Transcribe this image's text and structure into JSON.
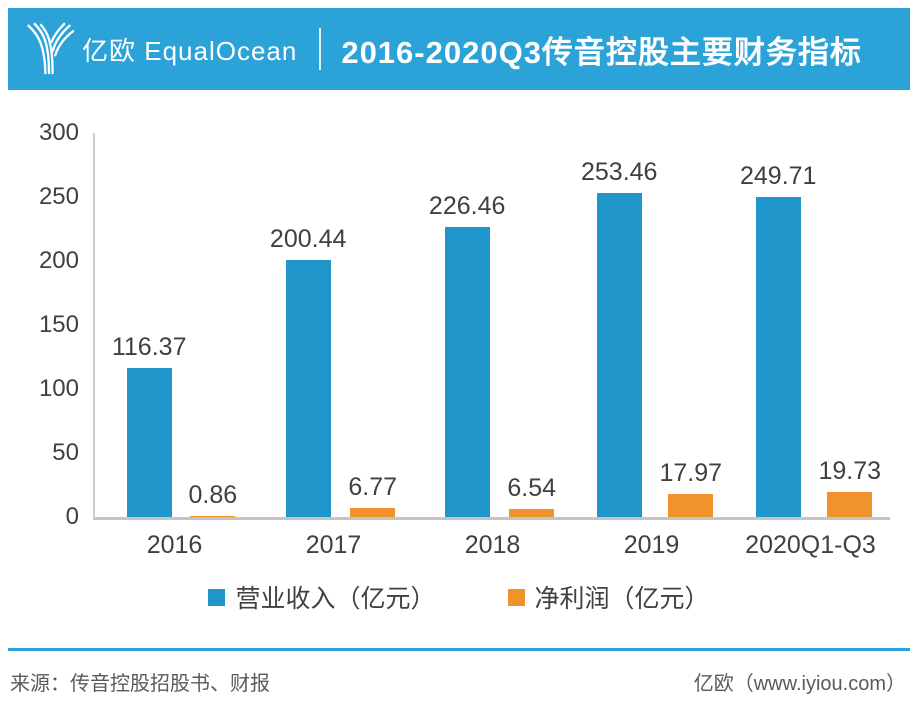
{
  "header": {
    "logo_text": "亿欧 EqualOcean",
    "title": "2016-2020Q3传音控股主要财务指标"
  },
  "chart_data": {
    "type": "bar",
    "title": "2016-2020Q3传音控股主要财务指标",
    "categories": [
      "2016",
      "2017",
      "2018",
      "2019",
      "2020Q1-Q3"
    ],
    "series": [
      {
        "name": "营业收入（亿元）",
        "color": "#2196CB",
        "values": [
          116.37,
          200.44,
          226.46,
          253.46,
          249.71
        ]
      },
      {
        "name": "净利润（亿元）",
        "color": "#F0932D",
        "values": [
          0.86,
          6.77,
          6.54,
          17.97,
          19.73
        ]
      }
    ],
    "xlabel": "",
    "ylabel": "",
    "ylim": [
      0,
      300
    ],
    "yticks": [
      0,
      50,
      100,
      150,
      200,
      250,
      300
    ],
    "grid": false,
    "legend_position": "bottom"
  },
  "footer": {
    "source": "来源：传音控股招股书、财报",
    "site": "亿欧（www.iyiou.com）"
  },
  "colors": {
    "banner": "#2BA3D9",
    "bar_blue": "#2196CB",
    "bar_orange": "#F0932D",
    "axis_line": "#C4C4C4",
    "text_dark": "#404040",
    "footer_text": "#5A5A5A"
  }
}
